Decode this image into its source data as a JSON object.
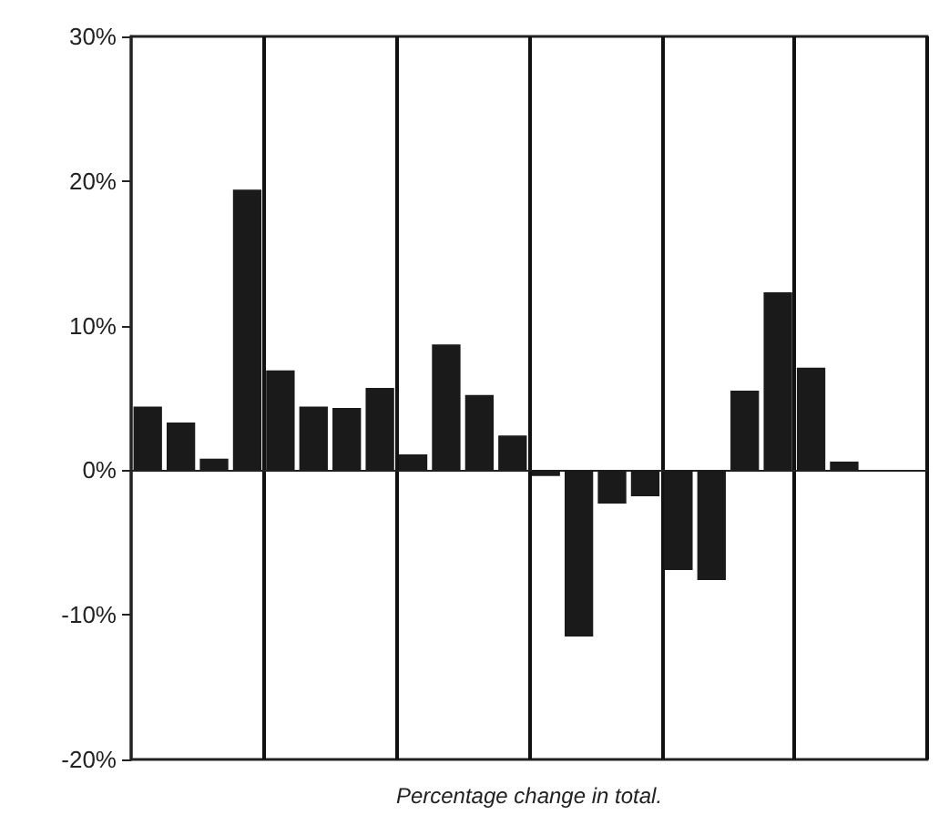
{
  "chart_data": {
    "type": "bar",
    "xlabel": "Percentage change in total.",
    "categories": [
      null,
      null,
      null,
      null,
      null,
      null,
      null,
      null,
      null,
      null,
      null,
      null,
      null,
      null,
      null,
      null,
      null,
      null,
      null,
      null,
      null,
      null,
      null,
      null
    ],
    "values": [
      4.4,
      3.3,
      0.8,
      19.4,
      6.9,
      4.4,
      4.3,
      5.7,
      1.1,
      8.7,
      5.2,
      2.4,
      -0.4,
      -11.5,
      -2.3,
      -1.8,
      -6.9,
      -7.6,
      5.5,
      12.3,
      7.1,
      0.6,
      null,
      null
    ],
    "color": "#1a1a1a",
    "ylim": [
      -20,
      30
    ],
    "yticks": [
      {
        "value": -20,
        "label": "-20%"
      },
      {
        "value": -10,
        "label": "-10%"
      },
      {
        "value": 0,
        "label": "0%"
      },
      {
        "value": 10,
        "label": "10%"
      },
      {
        "value": 20,
        "label": "20%"
      },
      {
        "value": 30,
        "label": "30%"
      }
    ],
    "grid": "x",
    "tick_labels": "y"
  }
}
